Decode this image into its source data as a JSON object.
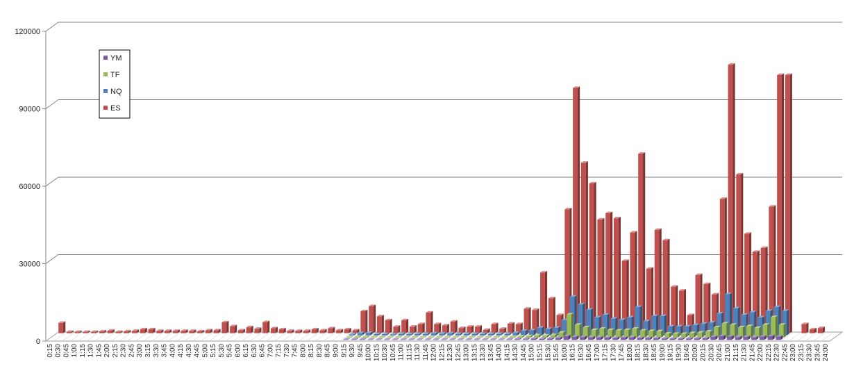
{
  "chart_data": {
    "type": "bar",
    "title": "",
    "xlabel": "",
    "ylabel": "",
    "ylim": [
      0,
      120000
    ],
    "yticks": [
      0,
      30000,
      60000,
      90000,
      120000
    ],
    "grid": true,
    "legend_position": "top-left",
    "categories": [
      "0:15",
      "0:30",
      "0:45",
      "1:00",
      "1:15",
      "1:30",
      "1:45",
      "2:00",
      "2:15",
      "2:30",
      "2:45",
      "3:00",
      "3:15",
      "3:30",
      "3:45",
      "4:00",
      "4:15",
      "4:30",
      "4:45",
      "5:00",
      "5:15",
      "5:30",
      "5:45",
      "6:00",
      "6:15",
      "6:30",
      "6:45",
      "7:00",
      "7:15",
      "7:30",
      "7:45",
      "8:00",
      "8:15",
      "8:30",
      "8:45",
      "9:00",
      "9:15",
      "9:30",
      "9:45",
      "10:00",
      "10:15",
      "10:30",
      "10:45",
      "11:00",
      "11:15",
      "11:30",
      "11:45",
      "12:00",
      "12:15",
      "12:30",
      "12:45",
      "13:00",
      "13:15",
      "13:30",
      "13:45",
      "14:00",
      "14:15",
      "14:30",
      "14:45",
      "15:00",
      "15:15",
      "15:30",
      "15:45",
      "16:00",
      "16:15",
      "16:30",
      "16:45",
      "17:00",
      "17:15",
      "17:30",
      "17:45",
      "18:00",
      "18:15",
      "18:30",
      "18:45",
      "19:00",
      "19:15",
      "19:30",
      "19:45",
      "20:00",
      "20:15",
      "20:30",
      "20:45",
      "21:00",
      "21:15",
      "21:30",
      "21:45",
      "22:00",
      "22:15",
      "22:30",
      "22:45",
      "23:00",
      "23:15",
      "23:30",
      "23:45",
      "24:00"
    ],
    "series": [
      {
        "name": "YM",
        "color": "#7B5EA7",
        "values": [
          0,
          0,
          0,
          0,
          0,
          0,
          0,
          0,
          0,
          0,
          0,
          0,
          0,
          0,
          0,
          0,
          0,
          0,
          0,
          0,
          0,
          0,
          0,
          0,
          0,
          0,
          0,
          0,
          0,
          0,
          0,
          0,
          0,
          0,
          0,
          0,
          100,
          200,
          200,
          150,
          150,
          150,
          150,
          150,
          150,
          150,
          150,
          150,
          150,
          150,
          150,
          150,
          150,
          150,
          150,
          150,
          200,
          300,
          300,
          500,
          400,
          500,
          800,
          1500,
          1200,
          1100,
          1000,
          1000,
          900,
          800,
          900,
          1000,
          800,
          800,
          700,
          500,
          500,
          500,
          500,
          600,
          700,
          1200,
          1500,
          1300,
          1100,
          1200,
          1000,
          1300,
          1500,
          1300,
          0,
          0,
          0,
          0,
          0,
          0
        ]
      },
      {
        "name": "TF",
        "color": "#9BBB59",
        "values": [
          0,
          0,
          0,
          0,
          0,
          0,
          0,
          0,
          0,
          0,
          0,
          0,
          0,
          0,
          0,
          0,
          0,
          0,
          0,
          0,
          0,
          0,
          0,
          0,
          0,
          0,
          0,
          0,
          0,
          0,
          0,
          0,
          0,
          0,
          0,
          0,
          200,
          300,
          300,
          200,
          200,
          200,
          200,
          200,
          200,
          200,
          200,
          200,
          200,
          200,
          200,
          200,
          200,
          200,
          200,
          200,
          300,
          500,
          600,
          900,
          800,
          1000,
          2000,
          9000,
          5000,
          4000,
          3000,
          3500,
          3000,
          2800,
          3000,
          3500,
          2800,
          2600,
          2500,
          1600,
          1500,
          1500,
          1800,
          2000,
          2400,
          4000,
          5500,
          5000,
          4000,
          4500,
          3800,
          5000,
          8000,
          5000,
          0,
          0,
          0,
          0,
          0,
          0
        ]
      },
      {
        "name": "NQ",
        "color": "#4F81BD",
        "values": [
          0,
          0,
          0,
          0,
          0,
          0,
          0,
          0,
          0,
          0,
          0,
          0,
          0,
          0,
          0,
          0,
          0,
          0,
          0,
          0,
          0,
          0,
          0,
          0,
          0,
          0,
          0,
          0,
          0,
          0,
          0,
          0,
          0,
          0,
          0,
          0,
          400,
          900,
          1000,
          500,
          500,
          400,
          600,
          500,
          600,
          600,
          800,
          700,
          800,
          600,
          600,
          600,
          600,
          600,
          600,
          600,
          1000,
          1800,
          2000,
          3000,
          2500,
          3000,
          6000,
          15000,
          12000,
          10000,
          7000,
          8000,
          6500,
          6000,
          7000,
          11000,
          5500,
          7500,
          7500,
          3500,
          3500,
          3500,
          4000,
          4500,
          5000,
          8500,
          16000,
          10500,
          8000,
          9000,
          7000,
          9500,
          11000,
          9500,
          0,
          0,
          0,
          0,
          0,
          0
        ]
      },
      {
        "name": "ES",
        "color": "#C0504D",
        "values": [
          4000,
          500,
          500,
          500,
          500,
          700,
          1000,
          500,
          700,
          900,
          1500,
          1500,
          900,
          900,
          900,
          900,
          900,
          700,
          1100,
          1100,
          4200,
          2700,
          1100,
          2300,
          1700,
          4300,
          1900,
          1500,
          900,
          900,
          900,
          1500,
          1100,
          1900,
          1100,
          1500,
          1100,
          8500,
          10500,
          6500,
          5000,
          2500,
          5000,
          2500,
          3500,
          8000,
          3500,
          3000,
          4500,
          2000,
          2500,
          2500,
          1300,
          3500,
          1700,
          3700,
          3500,
          9500,
          9000,
          23500,
          13500,
          7000,
          48000,
          95000,
          66000,
          58000,
          44000,
          46500,
          44500,
          28000,
          39000,
          69500,
          25000,
          40000,
          36000,
          18000,
          16500,
          7000,
          22500,
          19000,
          15000,
          52000,
          104000,
          61500,
          38500,
          31500,
          33000,
          49000,
          100000,
          100000,
          0,
          3500,
          1500,
          2000,
          0,
          0
        ]
      }
    ]
  }
}
